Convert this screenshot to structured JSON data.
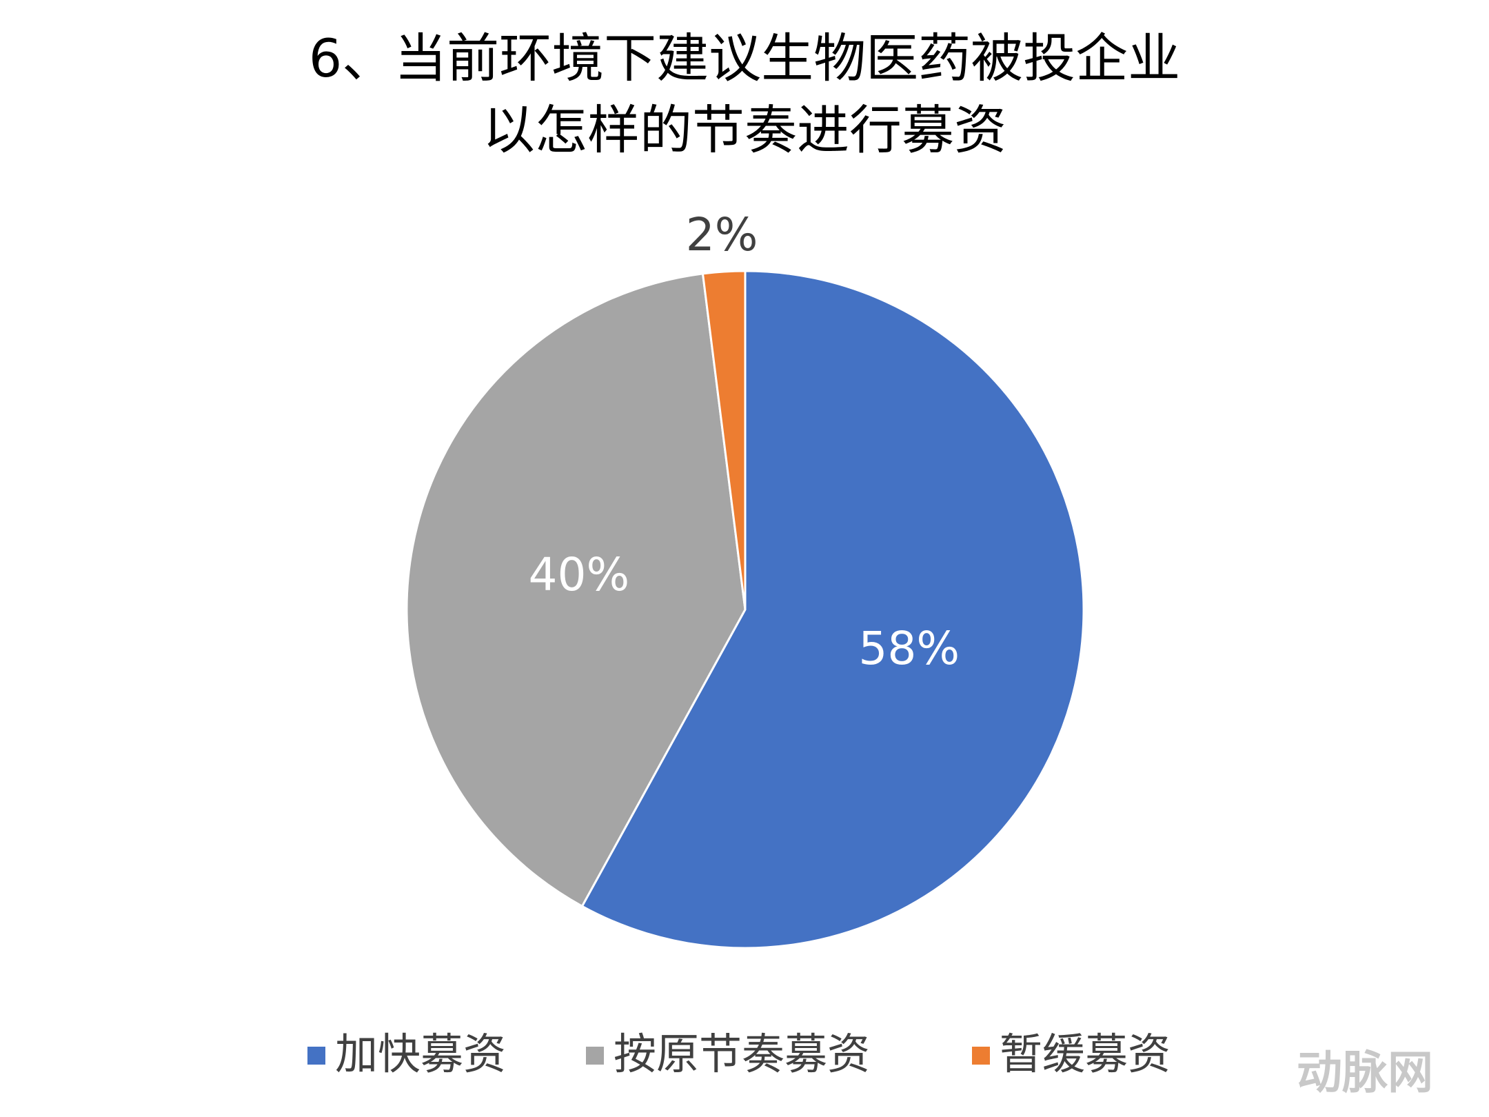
{
  "chart_data": {
    "type": "pie",
    "title": [
      "6、当前环境下建议生物医药被投企业",
      "以怎样的节奏进行募资"
    ],
    "categories": [
      "加快募资",
      "按原节奏募资",
      "暂缓募资"
    ],
    "values": [
      58,
      40,
      2
    ],
    "value_labels": [
      "58%",
      "40%",
      "2%"
    ],
    "colors": [
      "#4472c4",
      "#a5a5a5",
      "#ed7d31"
    ],
    "legend": "bottom"
  },
  "watermark": "动脉网"
}
